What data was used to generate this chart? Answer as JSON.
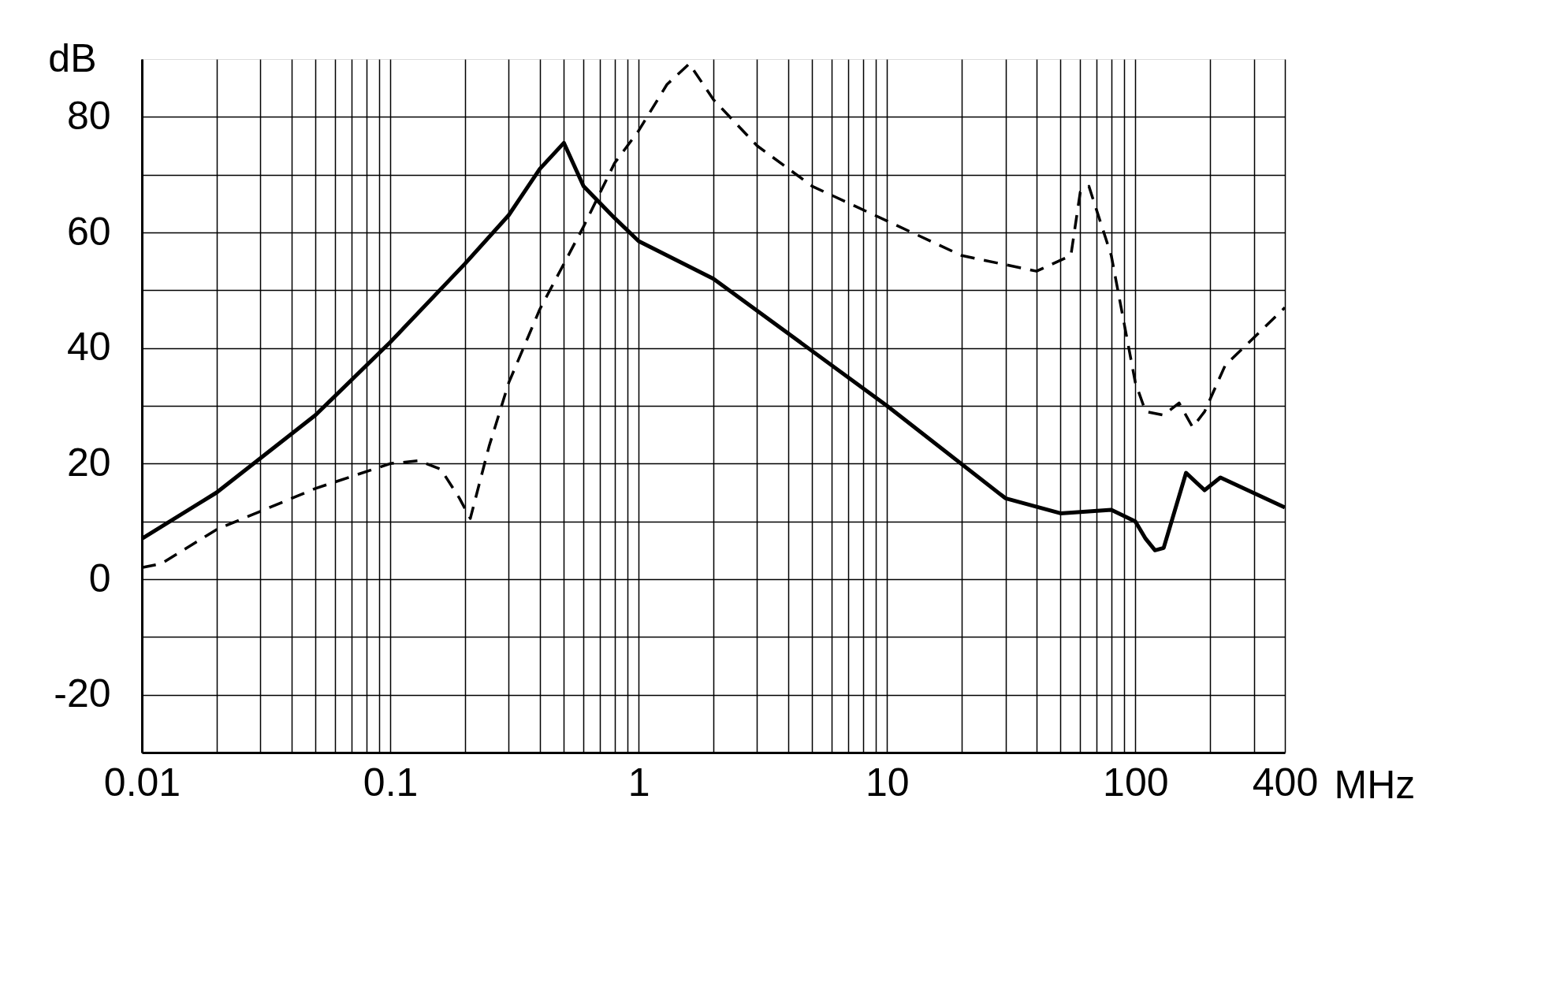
{
  "chart_data": {
    "type": "line",
    "xlabel": "MHz",
    "ylabel": "dB",
    "log": "x",
    "grid": true,
    "xlim": [
      0.01,
      400
    ],
    "ylim": [
      -30,
      90
    ],
    "xticks": [
      0.01,
      {
        "value": 0.02,
        "label": null
      },
      {
        "value": 0.03,
        "label": null
      },
      {
        "value": 0.04,
        "label": null
      },
      {
        "value": 0.05,
        "label": null
      },
      {
        "value": 0.06,
        "label": null
      },
      {
        "value": 0.07,
        "label": null
      },
      {
        "value": 0.08,
        "label": null
      },
      {
        "value": 0.09,
        "label": null
      },
      0.1,
      {
        "value": 0.2,
        "label": null
      },
      {
        "value": 0.3,
        "label": null
      },
      {
        "value": 0.4,
        "label": null
      },
      {
        "value": 0.5,
        "label": null
      },
      {
        "value": 0.6,
        "label": null
      },
      {
        "value": 0.7,
        "label": null
      },
      {
        "value": 0.8,
        "label": null
      },
      {
        "value": 0.9,
        "label": null
      },
      1,
      {
        "value": 2,
        "label": null
      },
      {
        "value": 3,
        "label": null
      },
      {
        "value": 4,
        "label": null
      },
      {
        "value": 5,
        "label": null
      },
      {
        "value": 6,
        "label": null
      },
      {
        "value": 7,
        "label": null
      },
      {
        "value": 8,
        "label": null
      },
      {
        "value": 9,
        "label": null
      },
      10,
      {
        "value": 20,
        "label": null
      },
      {
        "value": 30,
        "label": null
      },
      {
        "value": 40,
        "label": null
      },
      {
        "value": 50,
        "label": null
      },
      {
        "value": 60,
        "label": null
      },
      {
        "value": 70,
        "label": null
      },
      {
        "value": 80,
        "label": null
      },
      {
        "value": 90,
        "label": null
      },
      100,
      {
        "value": 200,
        "label": null
      },
      {
        "value": 300,
        "label": null
      },
      400
    ],
    "yticks": [
      -20,
      {
        "value": -10,
        "label": null
      },
      0,
      {
        "value": 10,
        "label": null
      },
      20,
      {
        "value": 30,
        "label": null
      },
      40,
      {
        "value": 50,
        "label": null
      },
      60,
      {
        "value": 70,
        "label": null
      },
      80
    ],
    "series": [
      {
        "color": "#000000",
        "line_style": "solid",
        "x": [
          0.01,
          0.02,
          0.05,
          0.1,
          0.2,
          0.3,
          0.4,
          0.5,
          0.6,
          0.8,
          1,
          2,
          10,
          30,
          50,
          80,
          100,
          110,
          120,
          130,
          160,
          190,
          220,
          400
        ],
        "values": [
          7,
          15,
          28.4,
          41,
          54.6,
          63,
          71,
          75.5,
          68,
          62.5,
          58.5,
          52,
          30,
          14,
          11.4,
          12,
          10,
          7,
          5,
          5.4,
          18.4,
          15.4,
          17.6,
          12.4
        ]
      },
      {
        "color": "#000000",
        "line_style": "dashed",
        "x": [
          0.01,
          0.012,
          0.02,
          0.05,
          0.1,
          0.13,
          0.16,
          0.19,
          0.21,
          0.25,
          0.3,
          0.4,
          0.6,
          0.8,
          1,
          1.3,
          1.6,
          2,
          3,
          5,
          10,
          20,
          40,
          55,
          60,
          65,
          80,
          100,
          110,
          130,
          150,
          170,
          190,
          230,
          400
        ],
        "values": [
          2,
          2.7,
          8.6,
          15.7,
          20,
          20.5,
          19,
          14,
          10.5,
          23,
          34,
          46.7,
          61,
          72,
          77.6,
          85.6,
          89.2,
          83,
          75,
          68,
          62,
          56,
          53.3,
          56,
          67,
          68,
          56,
          34,
          29,
          28.4,
          30.5,
          26.3,
          29,
          37,
          47
        ]
      }
    ]
  }
}
